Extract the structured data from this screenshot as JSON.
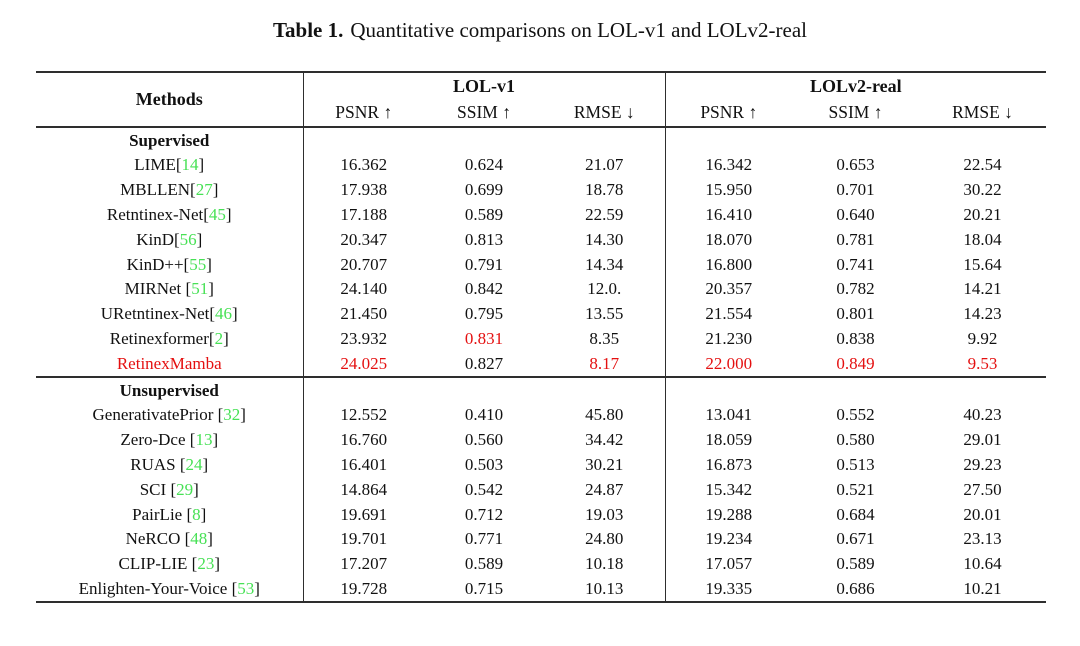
{
  "caption": {
    "label": "Table 1.",
    "text": "Quantitative comparisons on LOL-v1 and LOLv2-real"
  },
  "colors": {
    "text": "#111111",
    "rule": "#2e2e2e",
    "citation_green": "#47e155",
    "highlight_red": "#e41010"
  },
  "table": {
    "methods_header": "Methods",
    "groups": [
      {
        "name": "LOL-v1",
        "metrics": [
          "PSNR ↑",
          "SSIM ↑",
          "RMSE ↓"
        ]
      },
      {
        "name": "LOLv2-real",
        "metrics": [
          "PSNR ↑",
          "SSIM ↑",
          "RMSE ↓"
        ]
      }
    ],
    "sections": [
      {
        "label": "Supervised",
        "rows": [
          {
            "name": "LIME",
            "cite": "14",
            "cite_space": false,
            "name_red": false,
            "values": [
              "16.362",
              "0.624",
              "21.07",
              "16.342",
              "0.653",
              "22.54"
            ],
            "red_values": []
          },
          {
            "name": "MBLLEN",
            "cite": "27",
            "cite_space": false,
            "name_red": false,
            "values": [
              "17.938",
              "0.699",
              "18.78",
              "15.950",
              "0.701",
              "30.22"
            ],
            "red_values": []
          },
          {
            "name": "Retntinex-Net",
            "cite": "45",
            "cite_space": false,
            "name_red": false,
            "values": [
              "17.188",
              "0.589",
              "22.59",
              "16.410",
              "0.640",
              "20.21"
            ],
            "red_values": []
          },
          {
            "name": "KinD",
            "cite": "56",
            "cite_space": false,
            "name_red": false,
            "values": [
              "20.347",
              "0.813",
              "14.30",
              "18.070",
              "0.781",
              "18.04"
            ],
            "red_values": []
          },
          {
            "name": "KinD++",
            "cite": "55",
            "cite_space": false,
            "name_red": false,
            "values": [
              "20.707",
              "0.791",
              "14.34",
              "16.800",
              "0.741",
              "15.64"
            ],
            "red_values": []
          },
          {
            "name": "MIRNet",
            "cite": "51",
            "cite_space": true,
            "name_red": false,
            "values": [
              "24.140",
              "0.842",
              "12.0.",
              "20.357",
              "0.782",
              "14.21"
            ],
            "red_values": []
          },
          {
            "name": "URetntinex-Net",
            "cite": "46",
            "cite_space": false,
            "name_red": false,
            "values": [
              "21.450",
              "0.795",
              "13.55",
              "21.554",
              "0.801",
              "14.23"
            ],
            "red_values": []
          },
          {
            "name": "Retinexformer",
            "cite": "2",
            "cite_space": false,
            "name_red": false,
            "values": [
              "23.932",
              "0.831",
              "8.35",
              "21.230",
              "0.838",
              "9.92"
            ],
            "red_values": [
              1
            ]
          },
          {
            "name": "RetinexMamba",
            "cite": null,
            "cite_space": false,
            "name_red": true,
            "values": [
              "24.025",
              "0.827",
              "8.17",
              "22.000",
              "0.849",
              "9.53"
            ],
            "red_values": [
              0,
              2,
              3,
              4,
              5
            ]
          }
        ]
      },
      {
        "label": "Unsupervised",
        "rows": [
          {
            "name": "GenerativatePrior",
            "cite": "32",
            "cite_space": true,
            "name_red": false,
            "values": [
              "12.552",
              "0.410",
              "45.80",
              "13.041",
              "0.552",
              "40.23"
            ],
            "red_values": []
          },
          {
            "name": "Zero-Dce",
            "cite": "13",
            "cite_space": true,
            "name_red": false,
            "values": [
              "16.760",
              "0.560",
              "34.42",
              "18.059",
              "0.580",
              "29.01"
            ],
            "red_values": []
          },
          {
            "name": "RUAS",
            "cite": "24",
            "cite_space": true,
            "name_red": false,
            "values": [
              "16.401",
              "0.503",
              "30.21",
              "16.873",
              "0.513",
              "29.23"
            ],
            "red_values": []
          },
          {
            "name": "SCI",
            "cite": "29",
            "cite_space": true,
            "name_red": false,
            "values": [
              "14.864",
              "0.542",
              "24.87",
              "15.342",
              "0.521",
              "27.50"
            ],
            "red_values": []
          },
          {
            "name": "PairLie",
            "cite": "8",
            "cite_space": true,
            "name_red": false,
            "values": [
              "19.691",
              "0.712",
              "19.03",
              "19.288",
              "0.684",
              "20.01"
            ],
            "red_values": []
          },
          {
            "name": "NeRCO",
            "cite": "48",
            "cite_space": true,
            "name_red": false,
            "values": [
              "19.701",
              "0.771",
              "24.80",
              "19.234",
              "0.671",
              "23.13"
            ],
            "red_values": []
          },
          {
            "name": "CLIP-LIE",
            "cite": "23",
            "cite_space": true,
            "name_red": false,
            "values": [
              "17.207",
              "0.589",
              "10.18",
              "17.057",
              "0.589",
              "10.64"
            ],
            "red_values": []
          },
          {
            "name": "Enlighten-Your-Voice",
            "cite": "53",
            "cite_space": true,
            "name_red": false,
            "values": [
              "19.728",
              "0.715",
              "10.13",
              "19.335",
              "0.686",
              "10.21"
            ],
            "red_values": []
          }
        ]
      }
    ]
  }
}
